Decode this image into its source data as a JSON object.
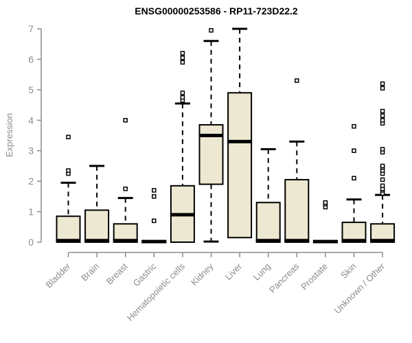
{
  "chart_data": {
    "type": "box",
    "title": "ENSG00000253586 - RP11-723D22.2",
    "ylabel": "Expression",
    "xlabel": "",
    "ylim": [
      0,
      7
    ],
    "yticks": [
      0,
      1,
      2,
      3,
      4,
      5,
      6,
      7
    ],
    "grid": false,
    "legend": "none",
    "colors": {
      "box_fill": "#EDE8D1",
      "box_stroke": "#000000",
      "median": "#000000",
      "whisker": "#000000",
      "outlier_stroke": "#000000",
      "axis": "#8B8B8B",
      "tick_label": "#8B8B8B",
      "title": "#000000",
      "background": "#FFFFFF"
    },
    "categories": [
      "Bladder",
      "Brain",
      "Breast",
      "Gastric",
      "Hematopoietic cells",
      "Kidney",
      "Liver",
      "Lung",
      "Pancreas",
      "Prostate",
      "Skin",
      "Unknown / Other"
    ],
    "boxes": [
      {
        "category": "Bladder",
        "q1": 0,
        "median": 0.05,
        "q3": 0.85,
        "whisker_low": 0,
        "whisker_high": 1.95,
        "outliers": [
          2.25,
          2.35,
          3.45
        ]
      },
      {
        "category": "Brain",
        "q1": 0,
        "median": 0.05,
        "q3": 1.05,
        "whisker_low": 0,
        "whisker_high": 2.5,
        "outliers": []
      },
      {
        "category": "Breast",
        "q1": 0,
        "median": 0.05,
        "q3": 0.6,
        "whisker_low": 0,
        "whisker_high": 1.45,
        "outliers": [
          1.75,
          4.0
        ]
      },
      {
        "category": "Gastric",
        "q1": 0,
        "median": 0.02,
        "q3": 0.04,
        "whisker_low": 0,
        "whisker_high": 0.04,
        "outliers": [
          0.7,
          1.5,
          1.7
        ]
      },
      {
        "category": "Hematopoietic cells",
        "q1": 0,
        "median": 0.9,
        "q3": 1.85,
        "whisker_low": 0,
        "whisker_high": 4.55,
        "outliers": [
          4.65,
          4.75,
          4.9,
          5.9,
          6.05,
          6.2
        ]
      },
      {
        "category": "Kidney",
        "q1": 1.9,
        "median": 3.5,
        "q3": 3.85,
        "whisker_low": 0.02,
        "whisker_high": 6.6,
        "outliers": [
          6.95
        ]
      },
      {
        "category": "Liver",
        "q1": 0.15,
        "median": 3.3,
        "q3": 4.9,
        "whisker_low": 0.15,
        "whisker_high": 7.0,
        "outliers": []
      },
      {
        "category": "Lung",
        "q1": 0,
        "median": 0.05,
        "q3": 1.3,
        "whisker_low": 0,
        "whisker_high": 3.05,
        "outliers": []
      },
      {
        "category": "Pancreas",
        "q1": 0,
        "median": 0.05,
        "q3": 2.05,
        "whisker_low": 0,
        "whisker_high": 3.3,
        "outliers": [
          5.3
        ]
      },
      {
        "category": "Prostate",
        "q1": 0,
        "median": 0.02,
        "q3": 0.04,
        "whisker_low": 0,
        "whisker_high": 0.04,
        "outliers": [
          1.15,
          1.25,
          1.3
        ]
      },
      {
        "category": "Skin",
        "q1": 0,
        "median": 0.05,
        "q3": 0.65,
        "whisker_low": 0,
        "whisker_high": 1.4,
        "outliers": [
          2.1,
          3.0,
          3.8
        ]
      },
      {
        "category": "Unknown / Other",
        "q1": 0,
        "median": 0.05,
        "q3": 0.6,
        "whisker_low": 0,
        "whisker_high": 1.55,
        "outliers": [
          1.6,
          1.7,
          1.75,
          1.85,
          2.05,
          2.25,
          2.35,
          2.45,
          2.5,
          2.95,
          3.05,
          3.9,
          4.0,
          4.15,
          4.3,
          5.05,
          5.2
        ]
      }
    ]
  }
}
